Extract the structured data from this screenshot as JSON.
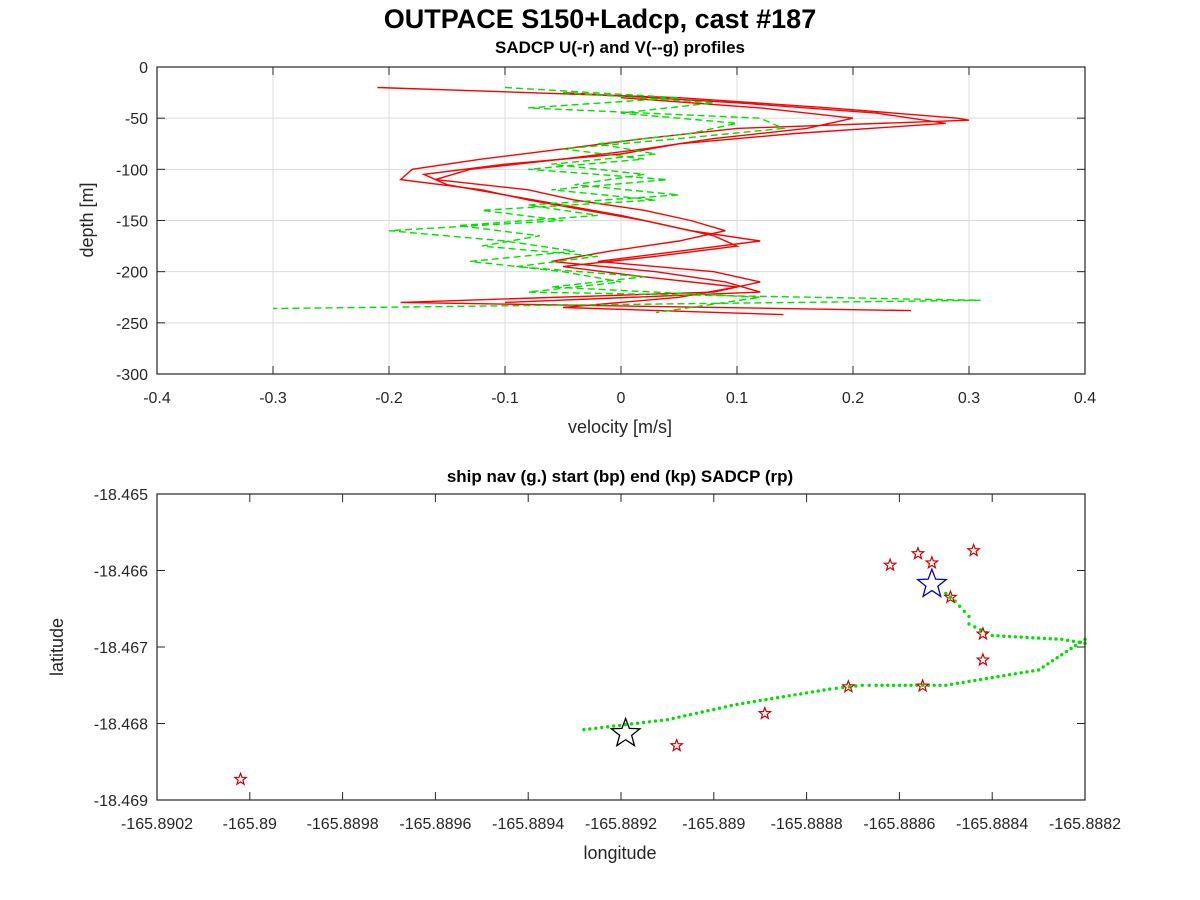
{
  "figure": {
    "title": "OUTPACE S150+Ladcp, cast #187"
  },
  "chart_data": [
    {
      "type": "line",
      "title": "SADCP U(-r) and V(--g) profiles",
      "xlabel": "velocity [m/s]",
      "ylabel": "depth [m]",
      "xlim": [
        -0.4,
        0.4
      ],
      "ylim": [
        -300,
        0
      ],
      "x_ticks": [
        "-0.4",
        "-0.3",
        "-0.2",
        "-0.1",
        "0",
        "0.1",
        "0.2",
        "0.3",
        "0.4"
      ],
      "y_ticks": [
        "0",
        "-50",
        "-100",
        "-150",
        "-200",
        "-250",
        "-300"
      ],
      "grid": true,
      "series": [
        {
          "style": "solid",
          "color": "#ff0000",
          "profiles": [
            {
              "depth": [
                -20,
                -30,
                -40,
                -50,
                -52,
                -60,
                -70,
                -80,
                -90,
                -100,
                -110,
                -120,
                -130,
                -140,
                -150,
                -160,
                -170,
                -180,
                -190,
                -200,
                -210,
                -220,
                -230,
                -238
              ],
              "u": [
                -0.21,
                0.05,
                0.18,
                0.29,
                0.3,
                0.1,
                0.02,
                -0.05,
                -0.12,
                -0.18,
                -0.19,
                -0.12,
                -0.08,
                -0.03,
                0.02,
                0.06,
                0.12,
                0.05,
                -0.02,
                0.08,
                0.12,
                0.08,
                -0.19,
                0.25
              ]
            },
            {
              "depth": [
                -25,
                -35,
                -45,
                -55,
                -65,
                -75,
                -85,
                -95,
                -105,
                -115,
                -125,
                -135,
                -145,
                -155,
                -165,
                -175,
                -185,
                -195,
                -205,
                -215,
                -225,
                -235,
                -242
              ],
              "u": [
                -0.05,
                0.1,
                0.22,
                0.28,
                0.15,
                0.05,
                0.0,
                -0.1,
                -0.17,
                -0.15,
                -0.1,
                -0.05,
                0.0,
                0.04,
                0.08,
                0.1,
                0.03,
                -0.05,
                0.02,
                0.1,
                0.05,
                -0.05,
                0.14
              ]
            },
            {
              "depth": [
                -30,
                -40,
                -50,
                -60,
                -70,
                -80,
                -90,
                -100,
                -110,
                -120,
                -130,
                -140,
                -150,
                -160,
                -170,
                -180,
                -190,
                -200,
                -210,
                -220,
                -230
              ],
              "u": [
                0.0,
                0.12,
                0.2,
                0.16,
                0.08,
                0.02,
                -0.05,
                -0.13,
                -0.16,
                -0.08,
                -0.04,
                0.02,
                0.06,
                0.09,
                0.05,
                -0.01,
                -0.06,
                0.03,
                0.09,
                0.12,
                -0.1
              ]
            }
          ]
        },
        {
          "style": "dashed",
          "color": "#00e000",
          "profiles": [
            {
              "depth": [
                -20,
                -30,
                -40,
                -50,
                -60,
                -70,
                -80,
                -90,
                -100,
                -110,
                -120,
                -130,
                -140,
                -150,
                -160,
                -170,
                -180,
                -190,
                -200,
                -210,
                -220,
                -228,
                -236
              ],
              "v": [
                -0.1,
                0.05,
                -0.08,
                0.12,
                0.14,
                0.05,
                -0.05,
                0.02,
                -0.08,
                0.04,
                -0.06,
                0.03,
                -0.12,
                -0.05,
                -0.2,
                -0.1,
                -0.04,
                -0.13,
                -0.05,
                0.0,
                -0.08,
                0.31,
                -0.3
              ]
            },
            {
              "depth": [
                -25,
                -35,
                -45,
                -55,
                -65,
                -75,
                -85,
                -95,
                -105,
                -115,
                -125,
                -135,
                -145,
                -155,
                -165,
                -175,
                -185,
                -195,
                -205,
                -215,
                -225,
                -240
              ],
              "v": [
                -0.05,
                0.08,
                0.0,
                0.1,
                0.06,
                -0.02,
                0.03,
                -0.06,
                0.02,
                -0.04,
                0.05,
                -0.08,
                -0.02,
                -0.14,
                -0.07,
                -0.12,
                -0.02,
                -0.09,
                0.02,
                -0.06,
                0.12,
                0.03
              ]
            }
          ]
        }
      ]
    },
    {
      "type": "scatter",
      "title": "ship nav (g.) start (bp) end (kp) SADCP (rp)",
      "xlabel": "longitude",
      "ylabel": "latitude",
      "xlim": [
        -165.8902,
        -165.8882
      ],
      "ylim": [
        -18.469,
        -18.465
      ],
      "x_ticks": [
        "-165.8902",
        "-165.89",
        "-165.8898",
        "-165.8896",
        "-165.8894",
        "-165.8892",
        "-165.889",
        "-165.8888",
        "-165.8886",
        "-165.8884",
        "-165.8882"
      ],
      "y_ticks": [
        "-18.465",
        "-18.466",
        "-18.467",
        "-18.468",
        "-18.469"
      ],
      "grid": false,
      "nav_color": "#00e000",
      "nav_path": {
        "x": [
          -165.88928,
          -165.8891,
          -165.88895,
          -165.88875,
          -165.88868,
          -165.88865,
          -165.8885,
          -165.8883,
          -165.88825,
          -165.8882,
          -165.8882,
          -165.88825,
          -165.8884,
          -165.88845,
          -165.88845,
          -165.88848,
          -165.8885
        ],
        "y": [
          -18.46808,
          -18.46795,
          -18.46775,
          -18.46755,
          -18.4675,
          -18.4675,
          -18.4675,
          -18.4673,
          -18.4671,
          -18.4669,
          -18.46695,
          -18.4669,
          -18.46685,
          -18.4667,
          -18.4666,
          -18.4664,
          -18.4663
        ]
      },
      "sadcp_color": "#cc0000",
      "sadcp_points": {
        "x": [
          -165.89002,
          -165.88908,
          -165.88889,
          -165.88871,
          -165.88855,
          -165.88842,
          -165.88842,
          -165.88844,
          -165.88849,
          -165.88853,
          -165.88856,
          -165.88862
        ],
        "y": [
          -18.46873,
          -18.46829,
          -18.46787,
          -18.46752,
          -18.46751,
          -18.46717,
          -18.46683,
          -18.46574,
          -18.46635,
          -18.4659,
          -18.46578,
          -18.46593
        ]
      },
      "start_point": {
        "color": "#0000cc",
        "x": -165.88853,
        "y": -18.46618
      },
      "end_point": {
        "color": "#000000",
        "x": -165.88919,
        "y": -18.46813
      }
    }
  ]
}
